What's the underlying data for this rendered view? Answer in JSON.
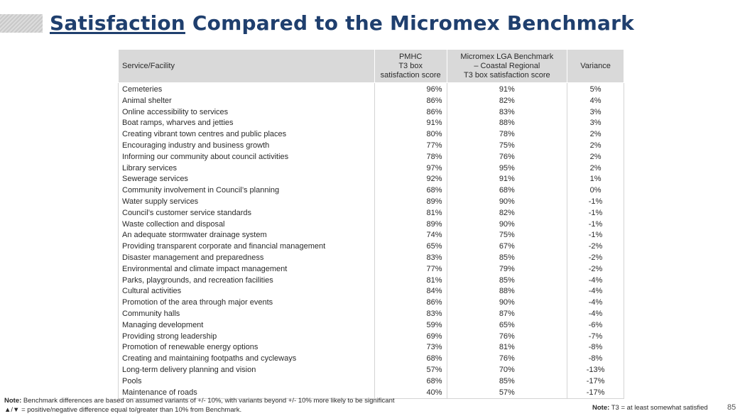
{
  "title": {
    "part1": "Satisfaction",
    "part2": " Compared to the Micromex Benchmark"
  },
  "table": {
    "headers": {
      "service": "Service/Facility",
      "pmhc": [
        "PMHC",
        "T3 box",
        "satisfaction score"
      ],
      "benchmark": [
        "Micromex LGA Benchmark",
        "– Coastal Regional",
        "T3 box satisfaction score"
      ],
      "variance": "Variance"
    },
    "rows": [
      {
        "service": "Cemeteries",
        "pmhc": "96%",
        "benchmark": "91%",
        "variance": "5%"
      },
      {
        "service": "Animal shelter",
        "pmhc": "86%",
        "benchmark": "82%",
        "variance": "4%"
      },
      {
        "service": "Online accessibility to services",
        "pmhc": "86%",
        "benchmark": "83%",
        "variance": "3%"
      },
      {
        "service": "Boat ramps, wharves and jetties",
        "pmhc": "91%",
        "benchmark": "88%",
        "variance": "3%"
      },
      {
        "service": "Creating vibrant town centres and public places",
        "pmhc": "80%",
        "benchmark": "78%",
        "variance": "2%"
      },
      {
        "service": "Encouraging industry and business growth",
        "pmhc": "77%",
        "benchmark": "75%",
        "variance": "2%"
      },
      {
        "service": "Informing our community about council activities",
        "pmhc": "78%",
        "benchmark": "76%",
        "variance": "2%"
      },
      {
        "service": "Library services",
        "pmhc": "97%",
        "benchmark": "95%",
        "variance": "2%"
      },
      {
        "service": "Sewerage services",
        "pmhc": "92%",
        "benchmark": "91%",
        "variance": "1%"
      },
      {
        "service": "Community involvement in Council’s planning",
        "pmhc": "68%",
        "benchmark": "68%",
        "variance": "0%"
      },
      {
        "service": "Water supply services",
        "pmhc": "89%",
        "benchmark": "90%",
        "variance": "-1%"
      },
      {
        "service": "Council’s customer service standards",
        "pmhc": "81%",
        "benchmark": "82%",
        "variance": "-1%"
      },
      {
        "service": "Waste collection and disposal",
        "pmhc": "89%",
        "benchmark": "90%",
        "variance": "-1%"
      },
      {
        "service": "An adequate stormwater drainage system",
        "pmhc": "74%",
        "benchmark": "75%",
        "variance": "-1%"
      },
      {
        "service": "Providing transparent corporate and financial management",
        "pmhc": "65%",
        "benchmark": "67%",
        "variance": "-2%"
      },
      {
        "service": "Disaster management and preparedness",
        "pmhc": "83%",
        "benchmark": "85%",
        "variance": "-2%"
      },
      {
        "service": "Environmental and climate impact management",
        "pmhc": "77%",
        "benchmark": "79%",
        "variance": "-2%"
      },
      {
        "service": "Parks, playgrounds, and recreation facilities",
        "pmhc": "81%",
        "benchmark": "85%",
        "variance": "-4%"
      },
      {
        "service": "Cultural activities",
        "pmhc": "84%",
        "benchmark": "88%",
        "variance": "-4%"
      },
      {
        "service": "Promotion of the area through major events",
        "pmhc": "86%",
        "benchmark": "90%",
        "variance": "-4%"
      },
      {
        "service": "Community halls",
        "pmhc": "83%",
        "benchmark": "87%",
        "variance": "-4%"
      },
      {
        "service": "Managing development",
        "pmhc": "59%",
        "benchmark": "65%",
        "variance": "-6%"
      },
      {
        "service": "Providing strong leadership",
        "pmhc": "69%",
        "benchmark": "76%",
        "variance": "-7%"
      },
      {
        "service": "Promotion of renewable energy options",
        "pmhc": "73%",
        "benchmark": "81%",
        "variance": "-8%"
      },
      {
        "service": "Creating and maintaining footpaths and cycleways",
        "pmhc": "68%",
        "benchmark": "76%",
        "variance": "-8%"
      },
      {
        "service": "Long-term delivery planning and vision",
        "pmhc": "57%",
        "benchmark": "70%",
        "variance": "-13%"
      },
      {
        "service": "Pools",
        "pmhc": "68%",
        "benchmark": "85%",
        "variance": "-17%"
      },
      {
        "service": "Maintenance of roads",
        "pmhc": "40%",
        "benchmark": "57%",
        "variance": "-17%"
      }
    ]
  },
  "notes": {
    "left_label": "Note:",
    "left_line1": " Benchmark differences are based on assumed variants of +/- 10%, with variants beyond +/- 10% more likely to be significant",
    "left_line2": "▲/▼ = positive/negative difference equal to/greater than 10% from Benchmark.",
    "right_label": "Note:",
    "right_text": " T3 = at least somewhat satisfied"
  },
  "page_number": "85",
  "colors": {
    "title": "#1f3f6e",
    "header_bg": "#d9d9d9",
    "grid": "#d4d4d4"
  }
}
